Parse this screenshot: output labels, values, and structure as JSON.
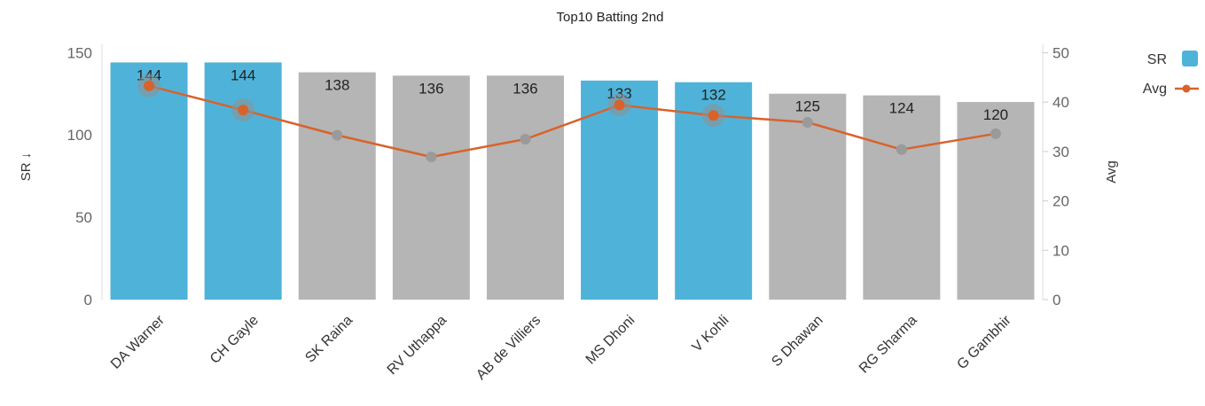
{
  "chart_data": {
    "type": "bar",
    "title": "Top10 Batting 2nd",
    "categories": [
      "DA Warner",
      "CH Gayle",
      "SK Raina",
      "RV Uthappa",
      "AB de Villiers",
      "MS Dhoni",
      "V Kohli",
      "S Dhawan",
      "RG Sharma",
      "G Gambhir"
    ],
    "series": [
      {
        "name": "SR",
        "type": "bar",
        "axis": "left",
        "values": [
          144,
          144,
          138,
          136,
          136,
          133,
          132,
          125,
          124,
          120
        ],
        "data_labels": [
          "144",
          "144",
          "138",
          "136",
          "136",
          "133",
          "132",
          "125",
          "124",
          "120"
        ],
        "highlighted": [
          true,
          true,
          false,
          false,
          false,
          true,
          true,
          false,
          false,
          false
        ]
      },
      {
        "name": "Avg",
        "type": "line",
        "axis": "right",
        "values": [
          43.3,
          38.4,
          33.3,
          28.9,
          32.5,
          39.4,
          37.3,
          35.9,
          30.4,
          33.6
        ]
      }
    ],
    "y_left": {
      "label": "SR ↓",
      "ylim": [
        0,
        155
      ],
      "ticks": [
        "0",
        "50",
        "100",
        "150"
      ],
      "tick_values": [
        0,
        50,
        100,
        150
      ]
    },
    "y_right": {
      "label": "Avg",
      "ylim": [
        0,
        51.7
      ],
      "ticks": [
        "0",
        "10",
        "20",
        "30",
        "40",
        "50"
      ],
      "tick_values": [
        0,
        10,
        20,
        30,
        40,
        50
      ]
    },
    "colors": {
      "highlight": "#4FB3D9",
      "bar": "#B5B5B5",
      "line": "#D9622B",
      "marker": "#9A9A9A"
    },
    "legend": {
      "position": "top-right",
      "entries": [
        "SR",
        "Avg"
      ]
    },
    "grid": false
  }
}
